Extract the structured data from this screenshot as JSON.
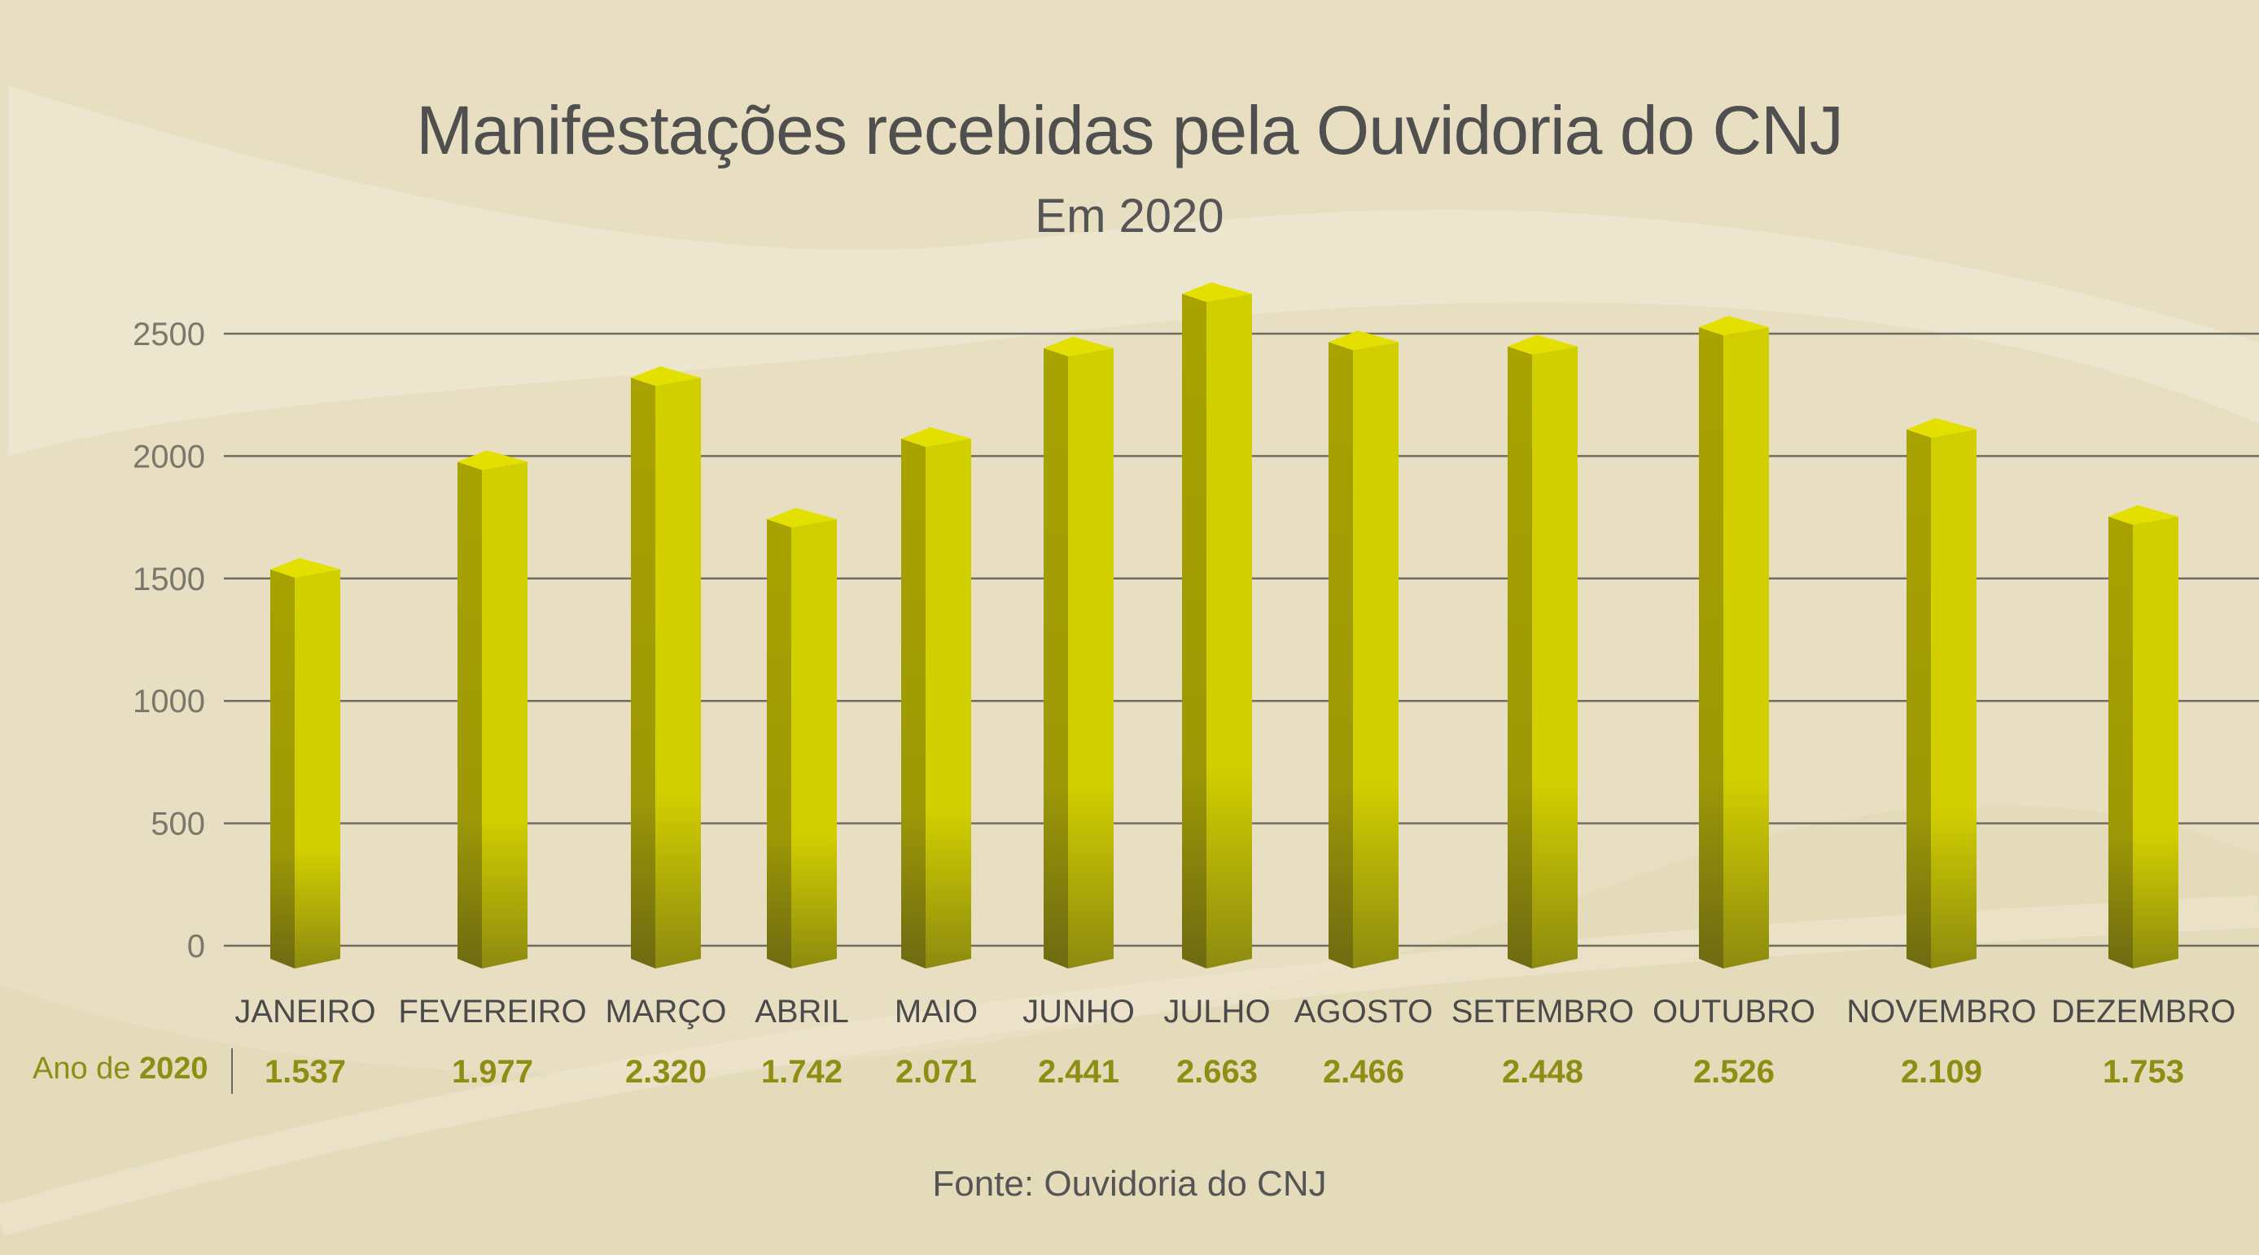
{
  "title": "Manifestações recebidas pela Ouvidoria do CNJ",
  "subtitle": "Em 2020",
  "source": "Fonte: Ouvidoria do CNJ",
  "row_label_prefix": "Ano de",
  "row_label_year": "2020",
  "colors": {
    "background": "#e8dfc2",
    "bar_front": "#d2cf00",
    "bar_side": "#a8a300",
    "bar_top": "#e3e000",
    "value_text": "#8f8d14",
    "grid": "#6f6c62"
  },
  "chart_data": {
    "type": "bar",
    "title": "Manifestações recebidas pela Ouvidoria do CNJ",
    "subtitle": "Em 2020",
    "categories": [
      "JANEIRO",
      "FEVEREIRO",
      "MARÇO",
      "ABRIL",
      "MAIO",
      "JUNHO",
      "JULHO",
      "AGOSTO",
      "SETEMBRO",
      "OUTUBRO",
      "NOVEMBRO",
      "DEZEMBRO"
    ],
    "values": [
      1537,
      1977,
      2320,
      1742,
      2071,
      2441,
      2663,
      2466,
      2448,
      2526,
      2109,
      1753
    ],
    "value_labels": [
      "1.537",
      "1.977",
      "2.320",
      "1.742",
      "2.071",
      "2.441",
      "2.663",
      "2.466",
      "2.448",
      "2.526",
      "2.109",
      "1.753"
    ],
    "ylim": [
      0,
      2500
    ],
    "yticks": [
      0,
      500,
      1000,
      1500,
      2000,
      2500
    ],
    "xlabel": "",
    "ylabel": "",
    "grid": true,
    "legend": "none"
  }
}
